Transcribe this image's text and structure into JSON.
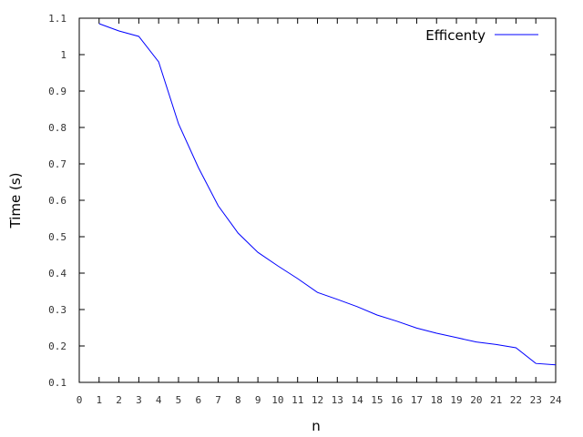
{
  "chart_data": {
    "type": "line",
    "xlabel": "n",
    "ylabel": "Time (s)",
    "xlim": [
      0,
      24
    ],
    "ylim": [
      0.1,
      1.1
    ],
    "xticks": [
      0,
      1,
      2,
      3,
      4,
      5,
      6,
      7,
      8,
      9,
      10,
      11,
      12,
      13,
      14,
      15,
      16,
      17,
      18,
      19,
      20,
      21,
      22,
      23,
      24
    ],
    "yticks": [
      0.1,
      0.2,
      0.3,
      0.4,
      0.5,
      0.6,
      0.7,
      0.8,
      0.9,
      1,
      1.1
    ],
    "grid": false,
    "legend_position": "top-right",
    "series": [
      {
        "name": "Efficenty",
        "color": "#0000ff",
        "x": [
          1,
          2,
          3,
          4,
          5,
          6,
          7,
          8,
          9,
          10,
          11,
          12,
          13,
          14,
          15,
          16,
          17,
          18,
          19,
          20,
          21,
          22,
          23,
          24
        ],
        "y": [
          1.085,
          1.065,
          1.05,
          0.98,
          0.81,
          0.69,
          0.585,
          0.51,
          0.457,
          0.42,
          0.385,
          0.347,
          0.328,
          0.308,
          0.285,
          0.268,
          0.249,
          0.235,
          0.223,
          0.211,
          0.204,
          0.195,
          0.152,
          0.148
        ]
      }
    ]
  }
}
